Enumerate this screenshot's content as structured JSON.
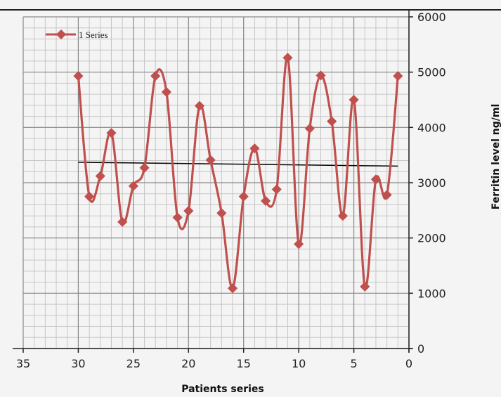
{
  "chart_data": {
    "type": "line",
    "title": "",
    "xlabel": "Patients series",
    "ylabel": "Ferritin level   ng/ml",
    "x_reversed": true,
    "y_axis_side": "right",
    "xlim": [
      0,
      35
    ],
    "ylim": [
      0,
      6000
    ],
    "x_ticks": [
      35,
      30,
      25,
      20,
      15,
      10,
      5,
      0
    ],
    "y_ticks": [
      0,
      1000,
      2000,
      3000,
      4000,
      5000,
      6000
    ],
    "grid": true,
    "smooth": true,
    "legend_position": "top-left",
    "series": [
      {
        "name": "1 Series",
        "color": "#c0504d",
        "marker": "diamond",
        "x": [
          30,
          29,
          28,
          27,
          26,
          25,
          24,
          23,
          22,
          21,
          20,
          19,
          18,
          17,
          16,
          15,
          14,
          13,
          12,
          11,
          10,
          9,
          8,
          7,
          6,
          5,
          4,
          3,
          2,
          1
        ],
        "y": [
          4930,
          2750,
          3120,
          3900,
          2290,
          2940,
          3270,
          4930,
          4640,
          2370,
          2490,
          4390,
          3410,
          2450,
          1090,
          2750,
          3620,
          2670,
          2880,
          5260,
          1890,
          3980,
          4940,
          4110,
          2400,
          4500,
          1120,
          3060,
          2780,
          4930
        ]
      }
    ],
    "trendline": {
      "type": "linear",
      "color": "#000000",
      "x": [
        30,
        1
      ],
      "y": [
        3370,
        3300
      ]
    }
  }
}
